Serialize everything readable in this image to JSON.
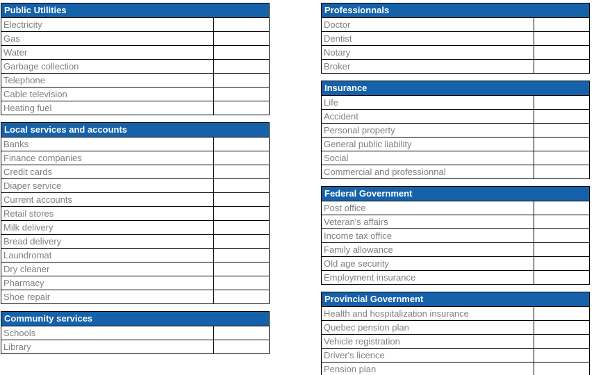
{
  "styles": {
    "header_bg": "#1561AA",
    "header_text_color": "#FFFFFF",
    "row_text_color": "#7F7F7F",
    "border_color": "#000000",
    "page_bg": "#FFFFFF"
  },
  "checklist": {
    "left_column": [
      {
        "title": "Public Utilities",
        "rows": [
          "Electricity",
          "Gas",
          "Water",
          "Garbage collection",
          "Telephone",
          "Cable television",
          "Heating fuel"
        ]
      },
      {
        "title": "Local services and accounts",
        "rows": [
          "Banks",
          "Finance companies",
          "Credit cards",
          "Diaper service",
          "Current accounts",
          "Retail stores",
          "Milk delivery",
          "Bread delivery",
          "Laundromat",
          "Dry cleaner",
          "Pharmacy",
          "Shoe repair"
        ]
      },
      {
        "title": "Community services",
        "rows": [
          "Schools",
          "Library"
        ]
      }
    ],
    "right_column": [
      {
        "title": "Professionnals",
        "rows": [
          "Doctor",
          "Dentist",
          "Notary",
          "Broker"
        ]
      },
      {
        "title": "Insurance",
        "rows": [
          "Life",
          "Accident",
          "Personal property",
          "General public liability",
          "Social",
          "Commercial and professionnal"
        ]
      },
      {
        "title": "Federal Government",
        "rows": [
          "Post office",
          "Veteran's affairs",
          "Income tax office",
          "Family allowance",
          "Old age security",
          "Employment insurance"
        ]
      },
      {
        "title": "Provincial Government",
        "rows": [
          "Health and hospitalization insurance",
          "Quebec pension plan",
          "Vehicle registration",
          "Driver's licence",
          "Pension plan"
        ]
      }
    ]
  }
}
